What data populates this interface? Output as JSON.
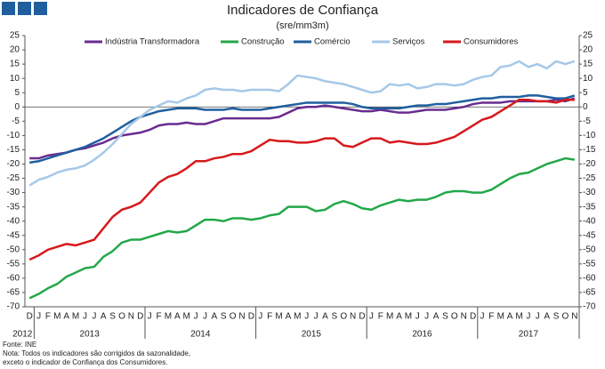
{
  "chart_data": {
    "type": "line",
    "title": "Indicadores de Confiança",
    "subtitle": "(sre/mm3m)",
    "categories": [
      "D",
      "J",
      "F",
      "M",
      "A",
      "M",
      "J",
      "J",
      "A",
      "S",
      "O",
      "N",
      "D",
      "J",
      "F",
      "M",
      "A",
      "M",
      "J",
      "J",
      "A",
      "S",
      "O",
      "N",
      "D",
      "J",
      "F",
      "M",
      "A",
      "M",
      "J",
      "J",
      "A",
      "S",
      "O",
      "N",
      "D",
      "J",
      "F",
      "M",
      "A",
      "M",
      "J",
      "J",
      "A",
      "S",
      "O",
      "N",
      "D",
      "J",
      "F",
      "M",
      "A",
      "M",
      "J",
      "J",
      "A",
      "S",
      "O",
      "N"
    ],
    "years": [
      "2012",
      "2013",
      "2014",
      "2015",
      "2016",
      "2017"
    ],
    "ylim": [
      -70,
      25
    ],
    "yticks": [
      -70,
      -65,
      -60,
      -55,
      -50,
      -45,
      -40,
      -35,
      -30,
      -25,
      -20,
      -15,
      -10,
      -5,
      0,
      5,
      10,
      15,
      20,
      25
    ],
    "series": [
      {
        "name": "Indústria Transformadora",
        "color": "#6a2c8f",
        "values": [
          -18,
          -18,
          -17,
          -16.5,
          -16,
          -15,
          -14.5,
          -13.5,
          -12.5,
          -11,
          -10,
          -9.5,
          -9,
          -8,
          -6.5,
          -6,
          -6,
          -5.5,
          -6,
          -6,
          -5,
          -4,
          -4,
          -4,
          -4,
          -4,
          -4,
          -3.5,
          -2,
          -0.5,
          0,
          0,
          0.5,
          0,
          -0.5,
          -1,
          -1.5,
          -1.5,
          -1,
          -1.5,
          -2,
          -2,
          -1.5,
          -1,
          -1,
          -1,
          -0.5,
          0,
          1,
          1.5,
          1.5,
          1.5,
          2,
          2,
          2,
          2,
          2,
          2.5,
          2,
          3
        ]
      },
      {
        "name": "Construção",
        "color": "#22a84a",
        "values": [
          -67,
          -65.5,
          -63.5,
          -62,
          -59.5,
          -58,
          -56.5,
          -56,
          -52.5,
          -50.5,
          -47.5,
          -46.5,
          -46.5,
          -45.5,
          -44.5,
          -43.5,
          -44,
          -43.5,
          -41.5,
          -39.5,
          -39.5,
          -40,
          -39,
          -39,
          -39.5,
          -39,
          -38,
          -37.5,
          -35,
          -35,
          -35,
          -36.5,
          -36,
          -34,
          -33,
          -34,
          -35.5,
          -36,
          -34.5,
          -33.5,
          -32.5,
          -33,
          -32.5,
          -32.5,
          -31.5,
          -30,
          -29.5,
          -29.5,
          -30,
          -30,
          -29,
          -27,
          -25,
          -23.5,
          -23,
          -21.5,
          -20,
          -19,
          -18,
          -18.5
        ]
      },
      {
        "name": "Comércio",
        "color": "#1f5f9e",
        "values": [
          -19.5,
          -19,
          -18,
          -17,
          -16,
          -15,
          -14,
          -12.5,
          -11,
          -9,
          -7,
          -5,
          -3.5,
          -2.5,
          -1.5,
          -1,
          -0.5,
          -0.5,
          -0.5,
          -1,
          -1,
          -1,
          -0.5,
          -1,
          -1,
          -1,
          -0.5,
          0,
          0.5,
          1,
          1.5,
          1.5,
          1.5,
          1.5,
          1.5,
          1,
          0,
          -0.5,
          -0.5,
          -0.5,
          -0.5,
          0,
          0.5,
          0.5,
          1,
          1,
          1.5,
          2,
          2.5,
          3,
          3,
          3.5,
          3.5,
          3.5,
          4,
          4,
          3.5,
          3,
          3,
          4
        ]
      },
      {
        "name": "Serviços",
        "color": "#a6c8e8",
        "values": [
          -27.5,
          -25.5,
          -24.5,
          -23,
          -22,
          -21.5,
          -20.5,
          -18.5,
          -16,
          -13,
          -9.5,
          -6,
          -3.5,
          -1,
          0.5,
          2,
          1.5,
          3,
          4,
          6,
          6.5,
          6,
          6,
          5.5,
          6,
          6,
          6,
          5.5,
          8,
          11,
          10.5,
          10,
          9,
          8.5,
          8,
          7,
          6,
          5,
          5.5,
          8,
          7.5,
          8,
          6.5,
          7,
          8,
          8,
          7.5,
          8,
          9.5,
          10.5,
          11,
          14,
          14.5,
          16,
          14,
          15,
          13.5,
          16,
          15,
          16
        ]
      },
      {
        "name": "Consumidores",
        "color": "#d7191c",
        "values": [
          -53.5,
          -52,
          -50,
          -49,
          -48,
          -48.5,
          -47.5,
          -46.5,
          -42.5,
          -38.5,
          -36,
          -35,
          -33.5,
          -30,
          -26.5,
          -24.5,
          -23.5,
          -21.5,
          -19,
          -19,
          -18,
          -17.5,
          -16.5,
          -16.5,
          -15.5,
          -13.5,
          -11.5,
          -12,
          -12,
          -12.5,
          -12.5,
          -12,
          -11,
          -11,
          -13.5,
          -14,
          -12.5,
          -11,
          -11,
          -12.5,
          -12,
          -12.5,
          -13,
          -13,
          -12.5,
          -11.5,
          -10.5,
          -8.5,
          -6.5,
          -4.5,
          -3.5,
          -1.5,
          0.5,
          2.5,
          2.5,
          2,
          2,
          1.5,
          2.5,
          2.5
        ]
      }
    ],
    "source": "Fonte: INE",
    "notes": [
      "Nota: Todos os indicadores são corrigidos da sazonalidade,",
      "exceto o indicador de Confiança dos Consumidores."
    ]
  }
}
